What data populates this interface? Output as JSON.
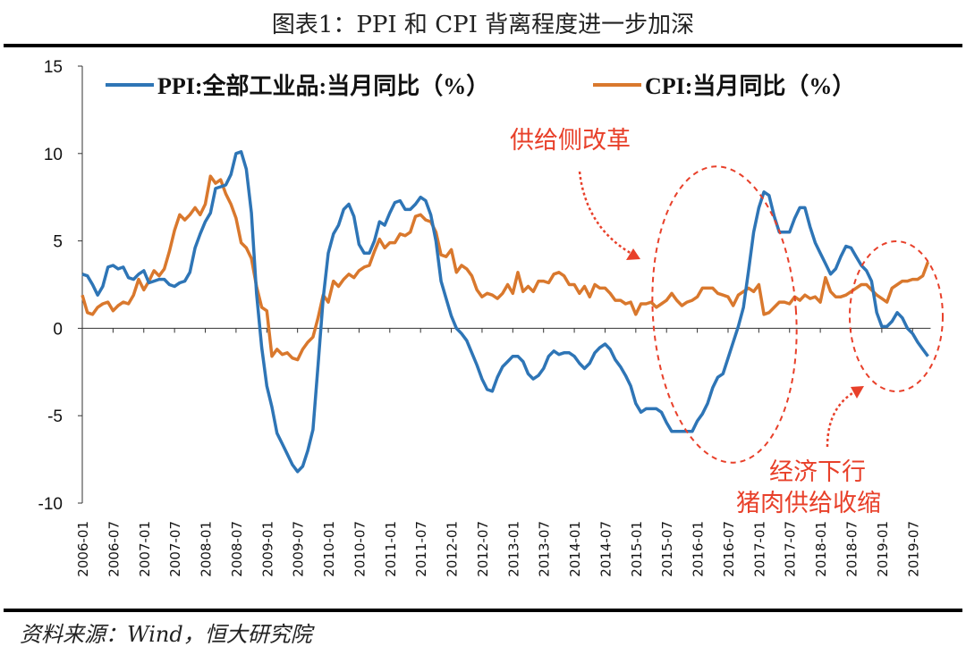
{
  "title": "图表1：PPI 和 CPI 背离程度进一步加深",
  "source": "资料来源：Wind，恒大研究院",
  "colors": {
    "ppi": "#2e75b6",
    "cpi": "#d9782d",
    "annotation": "#e8402a"
  },
  "annotations": {
    "supply_reform": "供给侧改革",
    "downturn_line1": "经济下行",
    "downturn_line2": "猪肉供给收缩"
  },
  "chart_data": {
    "type": "line",
    "title": "",
    "xlabel": "",
    "ylabel": "",
    "ylim": [
      -10,
      15
    ],
    "yticks": [
      "15",
      "10",
      "5",
      "0",
      "-5",
      "-10"
    ],
    "ytick_values": [
      15,
      10,
      5,
      0,
      -5,
      -10
    ],
    "xticks": [
      "2006-01",
      "2006-07",
      "2007-01",
      "2007-07",
      "2008-01",
      "2008-07",
      "2009-01",
      "2009-07",
      "2010-01",
      "2010-07",
      "2011-01",
      "2011-07",
      "2012-01",
      "2012-07",
      "2013-01",
      "2013-07",
      "2014-01",
      "2014-07",
      "2015-01",
      "2015-07",
      "2016-01",
      "2016-07",
      "2017-01",
      "2017-07",
      "2018-01",
      "2018-07",
      "2019-01",
      "2019-07"
    ],
    "x_start": "2006-01",
    "x_end": "2019-10",
    "legend": "top",
    "grid": false,
    "series": [
      {
        "name": "PPI:全部工业品:当月同比（%）",
        "color": "#2e75b6",
        "values": [
          3.1,
          3.0,
          2.5,
          1.9,
          2.4,
          3.5,
          3.6,
          3.4,
          3.5,
          2.9,
          2.8,
          3.1,
          3.3,
          2.6,
          2.7,
          2.8,
          2.8,
          2.5,
          2.4,
          2.6,
          2.7,
          3.2,
          4.6,
          5.4,
          6.1,
          6.6,
          8.0,
          8.1,
          8.2,
          8.8,
          10.0,
          10.1,
          9.1,
          6.6,
          2.0,
          -1.1,
          -3.3,
          -4.5,
          -6.0,
          -6.6,
          -7.2,
          -7.8,
          -8.2,
          -7.9,
          -7.0,
          -5.8,
          -2.1,
          1.7,
          4.3,
          5.4,
          5.9,
          6.8,
          7.1,
          6.4,
          4.8,
          4.3,
          4.3,
          5.0,
          6.1,
          5.9,
          6.6,
          7.2,
          7.3,
          6.8,
          6.8,
          7.1,
          7.5,
          7.3,
          6.5,
          5.0,
          2.7,
          1.7,
          0.7,
          0.0,
          -0.3,
          -0.7,
          -1.4,
          -2.1,
          -2.9,
          -3.5,
          -3.6,
          -2.8,
          -2.2,
          -1.9,
          -1.6,
          -1.6,
          -1.9,
          -2.6,
          -2.9,
          -2.7,
          -2.3,
          -1.6,
          -1.3,
          -1.5,
          -1.4,
          -1.4,
          -1.6,
          -2.0,
          -2.3,
          -2.0,
          -1.4,
          -1.1,
          -0.9,
          -1.2,
          -1.8,
          -2.2,
          -2.7,
          -3.3,
          -4.3,
          -4.8,
          -4.6,
          -4.6,
          -4.6,
          -4.8,
          -5.4,
          -5.9,
          -5.9,
          -5.9,
          -5.9,
          -5.9,
          -5.3,
          -4.9,
          -4.3,
          -3.4,
          -2.8,
          -2.6,
          -1.7,
          -0.8,
          0.1,
          1.2,
          3.3,
          5.5,
          6.9,
          7.8,
          7.6,
          6.4,
          5.5,
          5.5,
          5.5,
          6.3,
          6.9,
          6.9,
          5.8,
          4.9,
          4.3,
          3.7,
          3.1,
          3.4,
          4.1,
          4.7,
          4.6,
          4.1,
          3.6,
          3.3,
          2.7,
          0.9,
          0.1,
          0.1,
          0.4,
          0.9,
          0.6,
          0.0,
          -0.3,
          -0.8,
          -1.2,
          -1.6
        ]
      },
      {
        "name": "CPI:当月同比（%）",
        "color": "#d9782d",
        "values": [
          1.9,
          0.9,
          0.8,
          1.2,
          1.4,
          1.5,
          1.0,
          1.3,
          1.5,
          1.4,
          1.9,
          2.8,
          2.2,
          2.7,
          3.3,
          3.0,
          3.4,
          4.4,
          5.6,
          6.5,
          6.2,
          6.5,
          6.9,
          6.5,
          7.1,
          8.7,
          8.3,
          8.5,
          7.7,
          7.1,
          6.3,
          4.9,
          4.6,
          4.0,
          2.4,
          1.2,
          1.0,
          -1.6,
          -1.2,
          -1.5,
          -1.4,
          -1.7,
          -1.8,
          -1.2,
          -0.8,
          -0.5,
          0.6,
          1.9,
          1.5,
          2.7,
          2.4,
          2.8,
          3.1,
          2.9,
          3.3,
          3.5,
          3.6,
          4.4,
          5.1,
          4.6,
          4.9,
          4.9,
          5.4,
          5.3,
          5.5,
          6.4,
          6.5,
          6.2,
          6.1,
          5.5,
          4.2,
          4.1,
          4.5,
          3.2,
          3.6,
          3.4,
          3.0,
          2.2,
          1.8,
          2.0,
          1.9,
          1.7,
          2.0,
          2.5,
          2.0,
          3.2,
          2.1,
          2.4,
          2.1,
          2.7,
          2.7,
          2.6,
          3.1,
          3.2,
          3.0,
          2.5,
          2.5,
          2.0,
          2.4,
          1.8,
          2.5,
          2.3,
          2.3,
          2.0,
          1.6,
          1.6,
          1.4,
          1.5,
          0.8,
          1.4,
          1.4,
          1.5,
          1.2,
          1.4,
          1.6,
          2.0,
          1.6,
          1.3,
          1.5,
          1.6,
          1.8,
          2.3,
          2.3,
          2.3,
          2.0,
          1.9,
          1.8,
          1.3,
          1.9,
          2.1,
          2.3,
          2.1,
          2.5,
          0.8,
          0.9,
          1.2,
          1.5,
          1.5,
          1.4,
          1.8,
          1.6,
          1.9,
          1.7,
          1.8,
          1.5,
          2.9,
          2.1,
          1.8,
          1.8,
          1.9,
          2.1,
          2.3,
          2.5,
          2.5,
          2.2,
          1.9,
          1.7,
          1.5,
          2.3,
          2.5,
          2.7,
          2.7,
          2.8,
          2.8,
          3.0,
          3.8
        ]
      }
    ]
  }
}
